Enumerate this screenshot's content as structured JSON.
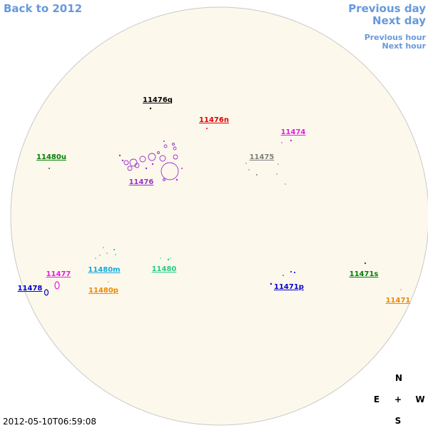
{
  "navigation": {
    "back": "Back to 2012",
    "previous_day": "Previous day",
    "next_day": "Next day",
    "previous_hour": "Previous hour",
    "next_hour": "Next hour"
  },
  "regions": [
    {
      "label": "11476q",
      "color": "#000000"
    },
    {
      "label": "11476n",
      "color": "#dd0000"
    },
    {
      "label": "11474",
      "color": "#dd22dd"
    },
    {
      "label": "11480u",
      "color": "#008000"
    },
    {
      "label": "11475",
      "color": "#808080"
    },
    {
      "label": "11476",
      "color": "#9933cc"
    },
    {
      "label": "11480m",
      "color": "#11aadd"
    },
    {
      "label": "11480",
      "color": "#22cc88"
    },
    {
      "label": "11477",
      "color": "#dd22dd"
    },
    {
      "label": "11478",
      "color": "#0000cc"
    },
    {
      "label": "11480p",
      "color": "#ee8800"
    },
    {
      "label": "11471p",
      "color": "#0000cc"
    },
    {
      "label": "11471s",
      "color": "#008000"
    },
    {
      "label": "11471",
      "color": "#ee8800"
    }
  ],
  "compass": {
    "north": "N",
    "east": "E",
    "center": "+",
    "west": "W",
    "south": "S"
  },
  "timestamp": "2012-05-10T06:59:08"
}
